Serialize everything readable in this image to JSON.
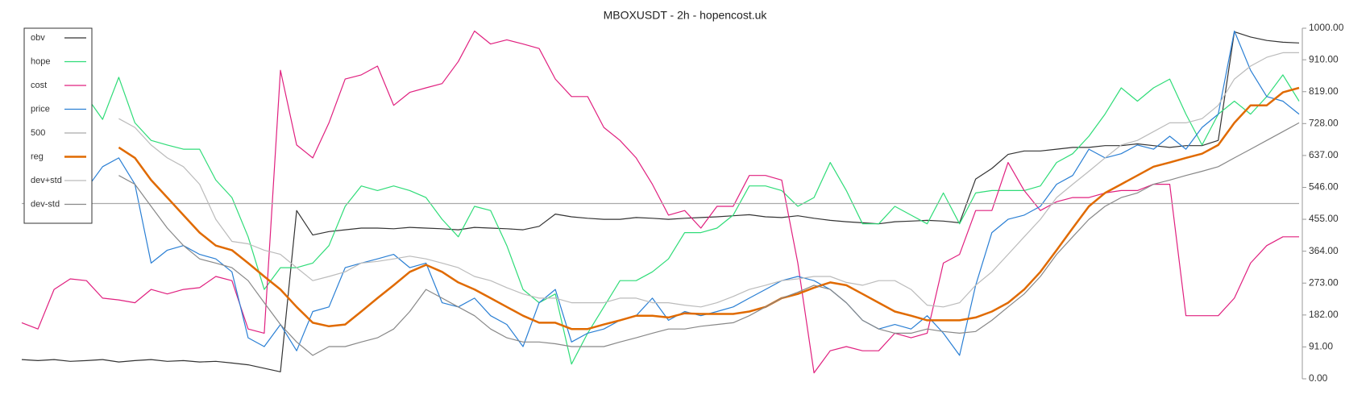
{
  "chart_data": {
    "type": "line",
    "title": "MBOXUSDT - 2h - hopencost.uk",
    "legend": "upper left",
    "grid": false,
    "ylim": [
      0,
      1000
    ],
    "yticks": [
      {
        "value": 0,
        "label": "0.00"
      },
      {
        "value": 91,
        "label": "91.00"
      },
      {
        "value": 182,
        "label": "182.00"
      },
      {
        "value": 273,
        "label": "273.00"
      },
      {
        "value": 364,
        "label": "364.00"
      },
      {
        "value": 455,
        "label": "455.00"
      },
      {
        "value": 546,
        "label": "546.00"
      },
      {
        "value": 637,
        "label": "637.00"
      },
      {
        "value": 728,
        "label": "728.00"
      },
      {
        "value": 819,
        "label": "819.00"
      },
      {
        "value": 910,
        "label": "910.00"
      },
      {
        "value": 1000,
        "label": "1000.00"
      }
    ],
    "series": [
      {
        "name": "obv",
        "color": "#333333",
        "values": [
          55,
          52,
          55,
          50,
          52,
          55,
          48,
          52,
          55,
          50,
          52,
          48,
          50,
          45,
          40,
          30,
          20,
          480,
          410,
          420,
          425,
          430,
          430,
          428,
          432,
          430,
          428,
          425,
          432,
          430,
          428,
          425,
          435,
          470,
          462,
          458,
          455,
          455,
          460,
          458,
          455,
          458,
          460,
          462,
          465,
          468,
          462,
          460,
          465,
          458,
          452,
          448,
          445,
          442,
          448,
          450,
          452,
          450,
          445,
          570,
          600,
          640,
          650,
          650,
          655,
          660,
          660,
          665,
          665,
          670,
          665,
          660,
          665,
          665,
          680,
          990,
          975,
          965,
          960,
          958
        ]
      },
      {
        "name": "hope",
        "color": "#2fdc78",
        "values": [
          null,
          null,
          null,
          null,
          805,
          740,
          860,
          730,
          680,
          667,
          655,
          655,
          567,
          517,
          405,
          255,
          317,
          317,
          330,
          380,
          492,
          550,
          537,
          550,
          537,
          517,
          455,
          405,
          492,
          480,
          380,
          255,
          217,
          242,
          42,
          130,
          205,
          280,
          280,
          305,
          342,
          417,
          417,
          430,
          467,
          550,
          550,
          537,
          492,
          517,
          617,
          537,
          442,
          442,
          492,
          467,
          442,
          530,
          442,
          530,
          537,
          537,
          537,
          550,
          617,
          642,
          692,
          755,
          830,
          792,
          830,
          855,
          755,
          667,
          755,
          792,
          755,
          805,
          867,
          792
        ]
      },
      {
        "name": "cost",
        "color": "#e0207f",
        "values": [
          160,
          142,
          255,
          285,
          280,
          230,
          225,
          217,
          255,
          242,
          255,
          260,
          292,
          280,
          142,
          130,
          880,
          667,
          630,
          730,
          855,
          867,
          892,
          780,
          817,
          830,
          842,
          905,
          992,
          955,
          967,
          955,
          942,
          855,
          805,
          805,
          717,
          680,
          630,
          555,
          467,
          480,
          430,
          492,
          492,
          580,
          580,
          567,
          330,
          17,
          80,
          92,
          80,
          80,
          130,
          117,
          130,
          330,
          355,
          480,
          480,
          617,
          537,
          480,
          505,
          517,
          517,
          530,
          537,
          537,
          555,
          555,
          180,
          180,
          180,
          230,
          330,
          380,
          405,
          405
        ]
      },
      {
        "name": "price",
        "color": "#2a7fd4",
        "values": [
          null,
          null,
          null,
          null,
          542,
          605,
          630,
          555,
          330,
          367,
          380,
          355,
          342,
          305,
          117,
          92,
          155,
          80,
          192,
          205,
          317,
          330,
          342,
          355,
          317,
          330,
          217,
          205,
          230,
          180,
          155,
          92,
          217,
          255,
          105,
          130,
          142,
          167,
          180,
          230,
          167,
          192,
          180,
          192,
          205,
          230,
          255,
          280,
          292,
          280,
          255,
          217,
          167,
          142,
          155,
          142,
          180,
          130,
          67,
          267,
          417,
          455,
          467,
          492,
          555,
          580,
          655,
          630,
          642,
          667,
          655,
          692,
          655,
          717,
          755,
          992,
          880,
          805,
          792,
          755
        ]
      },
      {
        "name": "500",
        "color": "#aaaaaa",
        "values": [
          500,
          500,
          500,
          500,
          500,
          500,
          500,
          500,
          500,
          500,
          500,
          500,
          500,
          500,
          500,
          500,
          500,
          500,
          500,
          500,
          500,
          500,
          500,
          500,
          500,
          500,
          500,
          500,
          500,
          500,
          500,
          500,
          500,
          500,
          500,
          500,
          500,
          500,
          500,
          500,
          500,
          500,
          500,
          500,
          500,
          500,
          500,
          500,
          500,
          500,
          500,
          500,
          500,
          500,
          500,
          500,
          500,
          500,
          500,
          500,
          500,
          500,
          500,
          500,
          500,
          500,
          500,
          500,
          500,
          500,
          500,
          500,
          500,
          500,
          500,
          500,
          500,
          500,
          500,
          500
        ]
      },
      {
        "name": "reg",
        "color": "#e06a00",
        "linewidth": 2.5,
        "values": [
          null,
          null,
          null,
          null,
          null,
          null,
          660,
          630,
          567,
          517,
          467,
          417,
          380,
          367,
          330,
          292,
          255,
          205,
          160,
          150,
          155,
          192,
          230,
          267,
          305,
          325,
          305,
          275,
          255,
          230,
          205,
          180,
          160,
          160,
          142,
          142,
          155,
          167,
          180,
          180,
          175,
          187,
          185,
          185,
          185,
          192,
          205,
          230,
          242,
          260,
          275,
          267,
          242,
          217,
          192,
          180,
          167,
          167,
          167,
          175,
          192,
          217,
          255,
          305,
          367,
          430,
          492,
          530,
          555,
          580,
          605,
          617,
          630,
          642,
          667,
          730,
          780,
          780,
          817,
          830
        ]
      },
      {
        "name": "dev+std",
        "color": "#bbbbbb",
        "values": [
          null,
          null,
          null,
          null,
          null,
          null,
          742,
          717,
          667,
          630,
          605,
          555,
          455,
          392,
          385,
          367,
          355,
          317,
          280,
          292,
          305,
          330,
          335,
          342,
          350,
          342,
          330,
          317,
          292,
          280,
          260,
          242,
          230,
          230,
          217,
          217,
          217,
          230,
          230,
          217,
          217,
          210,
          205,
          217,
          235,
          255,
          267,
          280,
          285,
          292,
          292,
          275,
          267,
          280,
          280,
          255,
          210,
          205,
          217,
          267,
          305,
          355,
          405,
          455,
          517,
          555,
          592,
          630,
          667,
          680,
          705,
          730,
          730,
          742,
          780,
          855,
          892,
          917,
          930,
          930
        ]
      },
      {
        "name": "dev-std",
        "color": "#888888",
        "values": [
          null,
          null,
          null,
          null,
          null,
          null,
          580,
          555,
          492,
          430,
          380,
          342,
          330,
          317,
          280,
          217,
          155,
          105,
          67,
          92,
          92,
          105,
          117,
          142,
          192,
          255,
          230,
          205,
          180,
          142,
          117,
          105,
          105,
          100,
          92,
          92,
          92,
          105,
          117,
          130,
          142,
          142,
          150,
          155,
          160,
          180,
          205,
          230,
          247,
          267,
          255,
          217,
          167,
          142,
          130,
          130,
          142,
          135,
          130,
          135,
          167,
          205,
          242,
          292,
          355,
          405,
          455,
          492,
          517,
          530,
          555,
          567,
          580,
          592,
          605,
          630,
          655,
          680,
          705,
          730
        ]
      }
    ]
  }
}
